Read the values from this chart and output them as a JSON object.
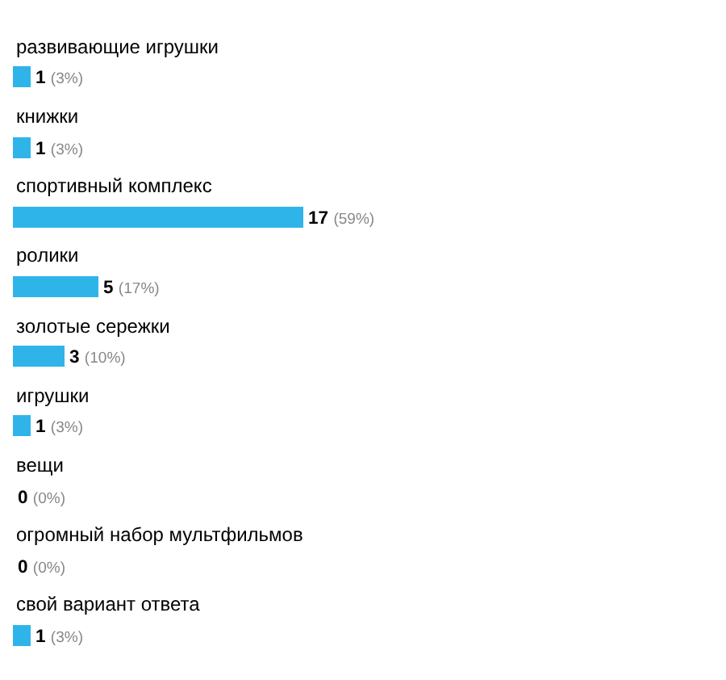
{
  "chart_data": {
    "type": "bar",
    "orientation": "horizontal",
    "categories": [
      "развивающие игрушки",
      "книжки",
      "спортивный комплекс",
      "ролики",
      "золотые сережки",
      "игрушки",
      "вещи",
      "огромный набор мультфильмов",
      "свой вариант ответа"
    ],
    "values": [
      1,
      1,
      17,
      5,
      3,
      1,
      0,
      0,
      1
    ],
    "value_labels": [
      "1 (3%)",
      "1 (3%)",
      "17 (59%)",
      "5 (17%)",
      "3 (10%)",
      "1 (3%)",
      "0 (0%)",
      "0 (0%)",
      "1 (3%)"
    ],
    "color": "#2fb4ea"
  }
}
